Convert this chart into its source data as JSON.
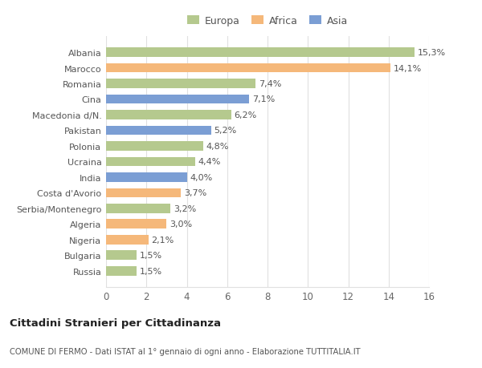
{
  "categories": [
    "Russia",
    "Bulgaria",
    "Nigeria",
    "Algeria",
    "Serbia/Montenegro",
    "Costa d'Avorio",
    "India",
    "Ucraina",
    "Polonia",
    "Pakistan",
    "Macedonia d/N.",
    "Cina",
    "Romania",
    "Marocco",
    "Albania"
  ],
  "values": [
    1.5,
    1.5,
    2.1,
    3.0,
    3.2,
    3.7,
    4.0,
    4.4,
    4.8,
    5.2,
    6.2,
    7.1,
    7.4,
    14.1,
    15.3
  ],
  "labels": [
    "1,5%",
    "1,5%",
    "2,1%",
    "3,0%",
    "3,2%",
    "3,7%",
    "4,0%",
    "4,4%",
    "4,8%",
    "5,2%",
    "6,2%",
    "7,1%",
    "7,4%",
    "14,1%",
    "15,3%"
  ],
  "colors": [
    "#b5c98e",
    "#b5c98e",
    "#f5b87a",
    "#f5b87a",
    "#b5c98e",
    "#f5b87a",
    "#7b9ed4",
    "#b5c98e",
    "#b5c98e",
    "#7b9ed4",
    "#b5c98e",
    "#7b9ed4",
    "#b5c98e",
    "#f5b87a",
    "#b5c98e"
  ],
  "legend_labels": [
    "Europa",
    "Africa",
    "Asia"
  ],
  "legend_colors": [
    "#b5c98e",
    "#f5b87a",
    "#7b9ed4"
  ],
  "title1": "Cittadini Stranieri per Cittadinanza",
  "title2": "COMUNE DI FERMO - Dati ISTAT al 1° gennaio di ogni anno - Elaborazione TUTTITALIA.IT",
  "xlim": [
    0,
    16
  ],
  "xticks": [
    0,
    2,
    4,
    6,
    8,
    10,
    12,
    14,
    16
  ],
  "background_color": "#ffffff",
  "grid_color": "#e0e0e0",
  "bar_height": 0.6
}
